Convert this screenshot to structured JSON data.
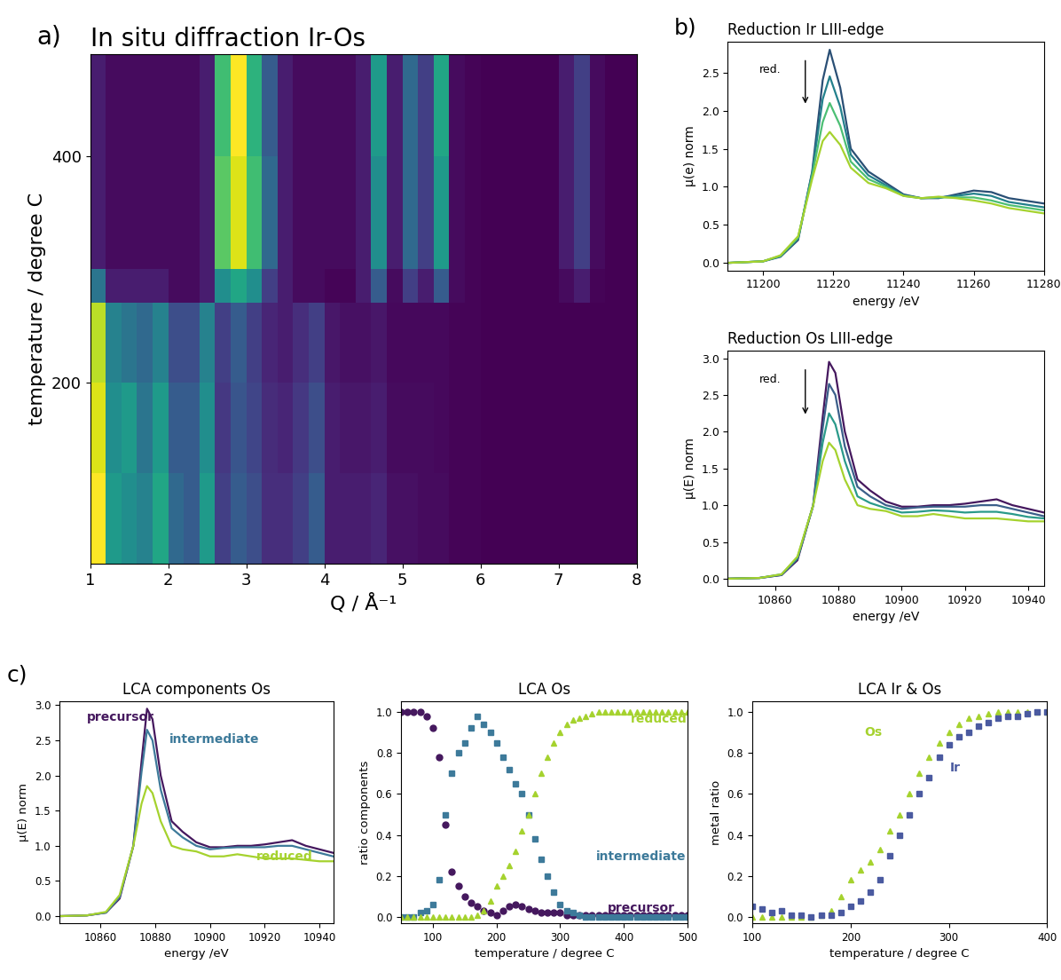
{
  "chart_data": [
    {
      "type": "heatmap",
      "panel": "a)",
      "title": "In situ diffraction Ir-Os",
      "xlabel": "Q / Å⁻¹",
      "ylabel": "temperature / degree C",
      "x": [
        1.0,
        1.2,
        1.4,
        1.6,
        1.8,
        2.0,
        2.2,
        2.4,
        2.6,
        2.8,
        3.0,
        3.2,
        3.4,
        3.6,
        3.8,
        4.0,
        4.2,
        4.4,
        4.6,
        4.8,
        5.0,
        5.2,
        5.4,
        5.6,
        5.8,
        6.0,
        6.2,
        6.4,
        6.6,
        6.8,
        7.0,
        7.2,
        7.4,
        7.6,
        7.8,
        8.0
      ],
      "y": [
        40,
        120,
        200,
        270,
        300,
        400,
        490
      ],
      "cells": [
        [
          1.0,
          0.55,
          0.5,
          0.45,
          0.6,
          0.35,
          0.3,
          0.55,
          0.2,
          0.3,
          0.25,
          0.15,
          0.15,
          0.2,
          0.3,
          0.1,
          0.1,
          0.1,
          0.12,
          0.06,
          0.06,
          0.05,
          0.05,
          0.03,
          0.03,
          0.02,
          0.02,
          0.02,
          0.02,
          0.02,
          0.02,
          0.02,
          0.02,
          0.02,
          0.02
        ],
        [
          0.95,
          0.5,
          0.55,
          0.4,
          0.55,
          0.3,
          0.3,
          0.5,
          0.18,
          0.28,
          0.22,
          0.14,
          0.12,
          0.18,
          0.25,
          0.1,
          0.08,
          0.08,
          0.1,
          0.05,
          0.05,
          0.05,
          0.04,
          0.03,
          0.03,
          0.02,
          0.02,
          0.02,
          0.02,
          0.02,
          0.02,
          0.02,
          0.02,
          0.02,
          0.02
        ],
        [
          0.9,
          0.45,
          0.4,
          0.35,
          0.45,
          0.25,
          0.25,
          0.45,
          0.2,
          0.3,
          0.2,
          0.12,
          0.1,
          0.15,
          0.2,
          0.08,
          0.06,
          0.06,
          0.08,
          0.04,
          0.04,
          0.04,
          0.04,
          0.03,
          0.03,
          0.02,
          0.02,
          0.02,
          0.02,
          0.02,
          0.02,
          0.02,
          0.02,
          0.02,
          0.02
        ],
        [
          0.4,
          0.1,
          0.1,
          0.1,
          0.1,
          0.05,
          0.05,
          0.1,
          0.5,
          0.6,
          0.5,
          0.2,
          0.1,
          0.05,
          0.05,
          0.03,
          0.03,
          0.1,
          0.3,
          0.05,
          0.2,
          0.1,
          0.3,
          0.05,
          0.03,
          0.02,
          0.02,
          0.02,
          0.02,
          0.02,
          0.05,
          0.1,
          0.03,
          0.02,
          0.02
        ],
        [
          0.1,
          0.05,
          0.05,
          0.05,
          0.05,
          0.05,
          0.05,
          0.1,
          0.75,
          0.95,
          0.7,
          0.35,
          0.1,
          0.05,
          0.05,
          0.05,
          0.05,
          0.1,
          0.5,
          0.1,
          0.35,
          0.2,
          0.55,
          0.05,
          0.03,
          0.02,
          0.02,
          0.02,
          0.02,
          0.02,
          0.1,
          0.2,
          0.05,
          0.02,
          0.02
        ],
        [
          0.1,
          0.05,
          0.05,
          0.05,
          0.05,
          0.05,
          0.05,
          0.1,
          0.7,
          1.0,
          0.65,
          0.3,
          0.1,
          0.05,
          0.05,
          0.05,
          0.05,
          0.1,
          0.55,
          0.1,
          0.35,
          0.2,
          0.6,
          0.05,
          0.03,
          0.02,
          0.02,
          0.02,
          0.02,
          0.02,
          0.1,
          0.2,
          0.05,
          0.02,
          0.02
        ]
      ],
      "xlim": [
        1,
        8
      ],
      "xticks": [
        1,
        2,
        3,
        4,
        5,
        6,
        7,
        8
      ],
      "ylim": [
        40,
        490
      ],
      "yticks": [
        200,
        400
      ]
    },
    {
      "type": "line",
      "panel": "b)",
      "title": "Reduction Ir LIII-edge",
      "annotation": "red.",
      "xlabel": "energy /eV",
      "ylabel": "µ(e) norm",
      "x": [
        11190,
        11200,
        11205,
        11210,
        11214,
        11217,
        11219,
        11222,
        11225,
        11230,
        11235,
        11240,
        11245,
        11250,
        11255,
        11260,
        11265,
        11270,
        11280
      ],
      "series": [
        {
          "color": "#2a4f75",
          "values": [
            0,
            0.02,
            0.08,
            0.3,
            1.2,
            2.4,
            2.8,
            2.3,
            1.5,
            1.2,
            1.05,
            0.9,
            0.85,
            0.85,
            0.9,
            0.95,
            0.93,
            0.85,
            0.78
          ]
        },
        {
          "color": "#23808c",
          "values": [
            0,
            0.02,
            0.09,
            0.32,
            1.18,
            2.15,
            2.45,
            2.05,
            1.42,
            1.15,
            1.02,
            0.89,
            0.85,
            0.86,
            0.88,
            0.91,
            0.88,
            0.8,
            0.73
          ]
        },
        {
          "color": "#4cbf74",
          "values": [
            0,
            0.02,
            0.09,
            0.33,
            1.15,
            1.85,
            2.1,
            1.8,
            1.33,
            1.1,
            1.0,
            0.88,
            0.85,
            0.86,
            0.86,
            0.86,
            0.82,
            0.76,
            0.69
          ]
        },
        {
          "color": "#a5d22e",
          "values": [
            0,
            0.02,
            0.1,
            0.35,
            1.1,
            1.6,
            1.72,
            1.55,
            1.25,
            1.05,
            0.98,
            0.88,
            0.85,
            0.87,
            0.85,
            0.82,
            0.78,
            0.72,
            0.65
          ]
        }
      ],
      "xlim": [
        11190,
        11280
      ],
      "xticks": [
        11200,
        11220,
        11240,
        11260,
        11280
      ],
      "ylim": [
        -0.1,
        2.9
      ],
      "yticks": [
        {
          "value": 0,
          "label": "0.0"
        },
        {
          "value": 0.5,
          "label": "0.5"
        },
        {
          "value": 1,
          "label": "1.0"
        },
        {
          "value": 1.5,
          "label": "1.5"
        },
        {
          "value": 2,
          "label": "2.0"
        },
        {
          "value": 2.5,
          "label": "2.5"
        }
      ]
    },
    {
      "type": "line",
      "title": "Reduction Os LIII-edge",
      "annotation": "red.",
      "xlabel": "energy /eV",
      "ylabel": "µ(E) norm",
      "x": [
        10845,
        10855,
        10862,
        10867,
        10872,
        10875,
        10877,
        10879,
        10882,
        10886,
        10890,
        10895,
        10900,
        10905,
        10910,
        10915,
        10920,
        10925,
        10930,
        10935,
        10940,
        10945
      ],
      "series": [
        {
          "color": "#45185e",
          "values": [
            0,
            0.01,
            0.05,
            0.25,
            1.0,
            2.2,
            2.95,
            2.8,
            2.0,
            1.35,
            1.2,
            1.05,
            0.98,
            0.98,
            1.0,
            1.0,
            1.02,
            1.05,
            1.08,
            1.0,
            0.95,
            0.9
          ]
        },
        {
          "color": "#3b5f8a",
          "values": [
            0,
            0.01,
            0.05,
            0.27,
            1.0,
            2.05,
            2.65,
            2.5,
            1.8,
            1.25,
            1.12,
            1.0,
            0.95,
            0.97,
            0.98,
            0.98,
            0.98,
            1.0,
            1.0,
            0.95,
            0.9,
            0.85
          ]
        },
        {
          "color": "#2a9a8a",
          "values": [
            0,
            0.01,
            0.06,
            0.28,
            1.0,
            1.85,
            2.25,
            2.1,
            1.6,
            1.12,
            1.03,
            0.96,
            0.9,
            0.91,
            0.93,
            0.92,
            0.9,
            0.91,
            0.91,
            0.88,
            0.84,
            0.82
          ]
        },
        {
          "color": "#a5d22e",
          "values": [
            0,
            0.01,
            0.06,
            0.3,
            1.0,
            1.6,
            1.85,
            1.75,
            1.35,
            1.0,
            0.95,
            0.92,
            0.85,
            0.85,
            0.88,
            0.85,
            0.82,
            0.82,
            0.82,
            0.8,
            0.78,
            0.78
          ]
        }
      ],
      "xlim": [
        10845,
        10945
      ],
      "xticks": [
        10860,
        10880,
        10900,
        10920,
        10940
      ],
      "ylim": [
        -0.1,
        3.1
      ],
      "yticks": [
        {
          "value": 0,
          "label": "0.0"
        },
        {
          "value": 0.5,
          "label": "0.5"
        },
        {
          "value": 1,
          "label": "1.0"
        },
        {
          "value": 1.5,
          "label": "1.5"
        },
        {
          "value": 2,
          "label": "2.0"
        },
        {
          "value": 2.5,
          "label": "2.5"
        },
        {
          "value": 3,
          "label": "3.0"
        }
      ]
    },
    {
      "type": "line",
      "panel": "c)",
      "title": "LCA components Os",
      "xlabel": "energy /eV",
      "ylabel": "µ(E) norm",
      "x": [
        10845,
        10855,
        10862,
        10867,
        10872,
        10875,
        10877,
        10879,
        10882,
        10886,
        10890,
        10895,
        10900,
        10905,
        10910,
        10915,
        10920,
        10925,
        10930,
        10935,
        10940,
        10945
      ],
      "series": [
        {
          "name": "precursor",
          "color": "#45185e",
          "values": [
            0,
            0.01,
            0.05,
            0.25,
            1.0,
            2.2,
            2.95,
            2.8,
            2.0,
            1.35,
            1.2,
            1.05,
            0.98,
            0.98,
            1.0,
            1.0,
            1.02,
            1.05,
            1.08,
            1.0,
            0.95,
            0.9
          ]
        },
        {
          "name": "intermediate",
          "color": "#3d7a9a",
          "values": [
            0,
            0.01,
            0.05,
            0.27,
            1.0,
            2.05,
            2.65,
            2.5,
            1.8,
            1.25,
            1.12,
            1.0,
            0.95,
            0.97,
            0.98,
            0.98,
            0.98,
            1.0,
            1.0,
            0.95,
            0.9,
            0.85
          ]
        },
        {
          "name": "reduced",
          "color": "#a5d22e",
          "values": [
            0,
            0.01,
            0.06,
            0.3,
            1.0,
            1.6,
            1.85,
            1.75,
            1.35,
            1.0,
            0.95,
            0.92,
            0.85,
            0.85,
            0.88,
            0.85,
            0.82,
            0.82,
            0.82,
            0.8,
            0.78,
            0.78
          ]
        }
      ],
      "xlim": [
        10845,
        10945
      ],
      "xticks": [
        10860,
        10880,
        10900,
        10920,
        10940
      ],
      "ylim": [
        -0.1,
        3.05
      ],
      "yticks": [
        {
          "value": 0,
          "label": "0.0"
        },
        {
          "value": 0.5,
          "label": "0.5"
        },
        {
          "value": 1,
          "label": "1.0"
        },
        {
          "value": 1.5,
          "label": "1.5"
        },
        {
          "value": 2,
          "label": "2.0"
        },
        {
          "value": 2.5,
          "label": "2.5"
        },
        {
          "value": 3,
          "label": "3.0"
        }
      ]
    },
    {
      "type": "scatter",
      "title": "LCA Os",
      "xlabel": "temperature / degree C",
      "ylabel": "ratio components",
      "x": [
        50,
        60,
        70,
        80,
        90,
        100,
        110,
        120,
        130,
        140,
        150,
        160,
        170,
        180,
        190,
        200,
        210,
        220,
        230,
        240,
        250,
        260,
        270,
        280,
        290,
        300,
        310,
        320,
        330,
        340,
        350,
        360,
        370,
        380,
        390,
        400,
        410,
        420,
        430,
        440,
        450,
        460,
        470,
        480,
        490,
        500
      ],
      "series": [
        {
          "name": "precursor",
          "color": "#45185e",
          "marker": "circle",
          "values": [
            1,
            1,
            1,
            1,
            0.98,
            0.92,
            0.78,
            0.45,
            0.22,
            0.15,
            0.1,
            0.07,
            0.05,
            0.03,
            0.02,
            0.01,
            0.03,
            0.05,
            0.06,
            0.05,
            0.04,
            0.03,
            0.02,
            0.02,
            0.02,
            0.02,
            0.01,
            0.01,
            0.01,
            0.01,
            0.01,
            0.01,
            0.01,
            0.01,
            0.01,
            0.01,
            0.01,
            0.01,
            0.01,
            0.01,
            0.01,
            0.01,
            0.01,
            0.01,
            0.01,
            0.01
          ]
        },
        {
          "name": "intermediate",
          "color": "#3d7a9a",
          "marker": "square",
          "values": [
            0,
            0,
            0,
            0.02,
            0.03,
            0.06,
            0.18,
            0.5,
            0.7,
            0.8,
            0.85,
            0.92,
            0.98,
            0.94,
            0.9,
            0.85,
            0.78,
            0.72,
            0.65,
            0.6,
            0.5,
            0.38,
            0.28,
            0.2,
            0.12,
            0.06,
            0.03,
            0.02,
            0.01,
            0,
            0,
            0,
            0,
            0,
            0,
            0,
            0,
            0,
            0,
            0,
            0,
            0,
            0,
            0,
            0,
            0
          ]
        },
        {
          "name": "reduced",
          "color": "#a5d22e",
          "marker": "triangle",
          "values": [
            0,
            0,
            0,
            0,
            0,
            0,
            0,
            0,
            0,
            0,
            0,
            0,
            0.01,
            0.03,
            0.08,
            0.15,
            0.2,
            0.25,
            0.32,
            0.42,
            0.5,
            0.6,
            0.7,
            0.78,
            0.85,
            0.9,
            0.94,
            0.96,
            0.97,
            0.98,
            0.99,
            1,
            1,
            1,
            1,
            1,
            1,
            1,
            1,
            1,
            1,
            1,
            1,
            1,
            1,
            1
          ]
        }
      ],
      "xlim": [
        50,
        500
      ],
      "xticks": [
        100,
        200,
        300,
        400,
        500
      ],
      "ylim": [
        -0.03,
        1.05
      ],
      "yticks": [
        {
          "value": 0,
          "label": "0.0"
        },
        {
          "value": 0.2,
          "label": "0.2"
        },
        {
          "value": 0.4,
          "label": "0.4"
        },
        {
          "value": 0.6,
          "label": "0.6"
        },
        {
          "value": 0.8,
          "label": "0.8"
        },
        {
          "value": 1,
          "label": "1.0"
        }
      ]
    },
    {
      "type": "scatter",
      "title": "LCA Ir & Os",
      "xlabel": "temperature / degree C",
      "ylabel": "metal ratio",
      "x": [
        100,
        110,
        120,
        130,
        140,
        150,
        160,
        170,
        180,
        190,
        200,
        210,
        220,
        230,
        240,
        250,
        260,
        270,
        280,
        290,
        300,
        310,
        320,
        330,
        340,
        350,
        360,
        370,
        380,
        390,
        400
      ],
      "series": [
        {
          "name": "Os",
          "color": "#a5d22e",
          "marker": "triangle",
          "values": [
            0,
            0,
            0,
            0,
            0,
            0,
            0,
            0.01,
            0.03,
            0.1,
            0.18,
            0.23,
            0.27,
            0.33,
            0.42,
            0.5,
            0.6,
            0.7,
            0.78,
            0.85,
            0.9,
            0.94,
            0.97,
            0.98,
            0.99,
            1,
            1,
            1,
            1,
            1,
            1
          ]
        },
        {
          "name": "Ir",
          "color": "#4a5aa0",
          "marker": "square",
          "values": [
            0.05,
            0.04,
            0.02,
            0.03,
            0.01,
            0.01,
            0,
            0.01,
            0.01,
            0.02,
            0.05,
            0.08,
            0.12,
            0.18,
            0.3,
            0.4,
            0.5,
            0.6,
            0.68,
            0.78,
            0.84,
            0.88,
            0.9,
            0.93,
            0.95,
            0.97,
            0.98,
            0.98,
            0.99,
            1,
            1
          ]
        }
      ],
      "xlim": [
        100,
        400
      ],
      "xticks": [
        100,
        200,
        300,
        400
      ],
      "ylim": [
        -0.03,
        1.05
      ],
      "yticks": [
        {
          "value": 0,
          "label": "0.0"
        },
        {
          "value": 0.2,
          "label": "0.2"
        },
        {
          "value": 0.4,
          "label": "0.4"
        },
        {
          "value": 0.6,
          "label": "0.6"
        },
        {
          "value": 0.8,
          "label": "0.8"
        },
        {
          "value": 1,
          "label": "1.0"
        }
      ]
    }
  ]
}
